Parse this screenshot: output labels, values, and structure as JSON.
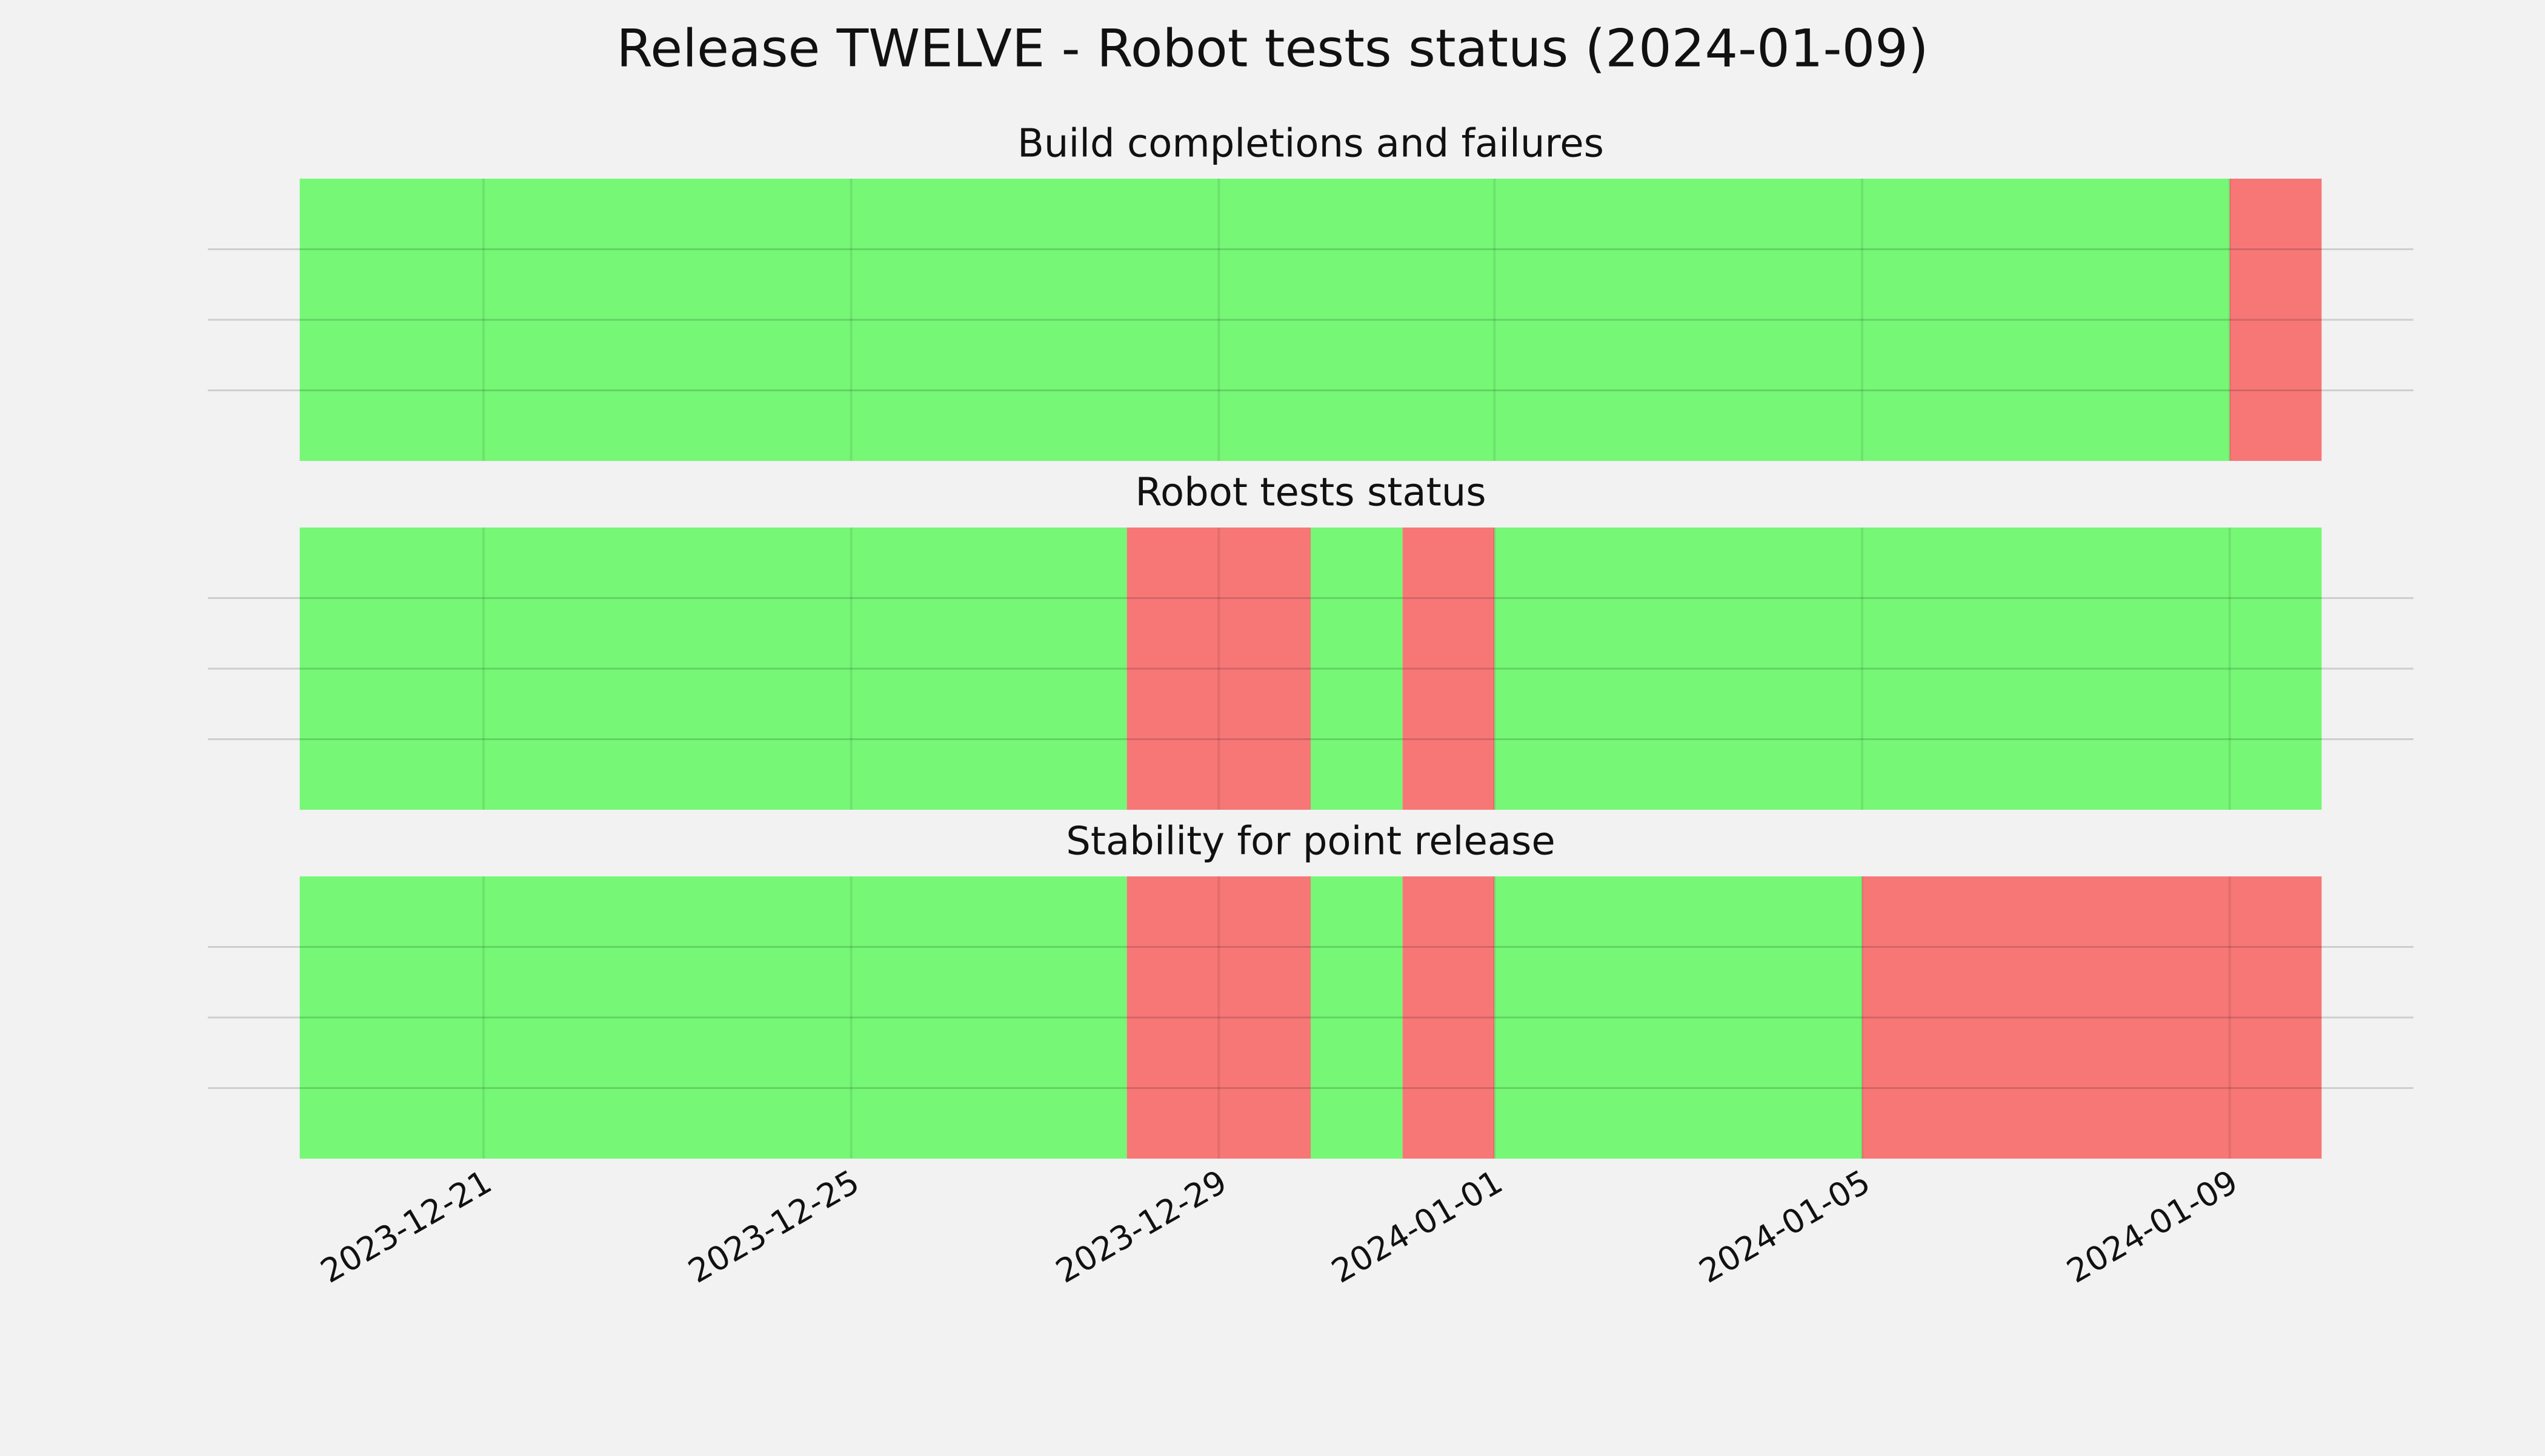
{
  "chart_data": {
    "type": "timeline",
    "title": "Release TWELVE - Robot tests status (2024-01-09)",
    "xlim": [
      "2023-12-18",
      "2024-01-11"
    ],
    "xticks": [
      "2023-12-21",
      "2023-12-25",
      "2023-12-29",
      "2024-01-01",
      "2024-01-05",
      "2024-01-09"
    ],
    "grid": true,
    "panels": [
      {
        "title": "Build completions and failures",
        "segments": [
          {
            "start": "2023-12-19",
            "end": "2024-01-09",
            "color": "#76f776"
          },
          {
            "start": "2024-01-09",
            "end": "2024-01-10",
            "color": "#f77777"
          }
        ]
      },
      {
        "title": "Robot tests status",
        "segments": [
          {
            "start": "2023-12-19",
            "end": "2023-12-28",
            "color": "#76f776"
          },
          {
            "start": "2023-12-28",
            "end": "2023-12-30",
            "color": "#f77777"
          },
          {
            "start": "2023-12-30",
            "end": "2023-12-31",
            "color": "#76f776"
          },
          {
            "start": "2023-12-31",
            "end": "2024-01-01",
            "color": "#f77777"
          },
          {
            "start": "2024-01-01",
            "end": "2024-01-10",
            "color": "#76f776"
          }
        ]
      },
      {
        "title": "Stability for point release",
        "segments": [
          {
            "start": "2023-12-19",
            "end": "2023-12-28",
            "color": "#76f776"
          },
          {
            "start": "2023-12-28",
            "end": "2023-12-30",
            "color": "#f77777"
          },
          {
            "start": "2023-12-30",
            "end": "2023-12-31",
            "color": "#76f776"
          },
          {
            "start": "2023-12-31",
            "end": "2024-01-01",
            "color": "#f77777"
          },
          {
            "start": "2024-01-01",
            "end": "2024-01-05",
            "color": "#76f776"
          },
          {
            "start": "2024-01-05",
            "end": "2024-01-10",
            "color": "#f77777"
          }
        ]
      }
    ]
  }
}
